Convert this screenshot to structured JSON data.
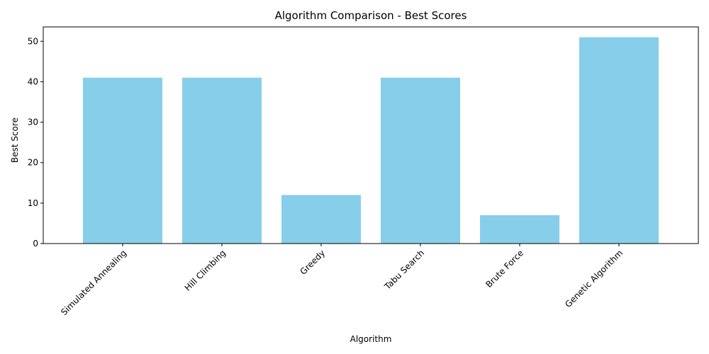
{
  "chart_data": {
    "type": "bar",
    "title": "Algorithm Comparison - Best Scores",
    "xlabel": "Algorithm",
    "ylabel": "Best Score",
    "categories": [
      "Simulated Annealing",
      "Hill Climbing",
      "Greedy",
      "Tabu Search",
      "Brute Force",
      "Genetic Algorithm"
    ],
    "values": [
      41,
      41,
      12,
      41,
      7,
      51
    ],
    "ylim": [
      0,
      53.55
    ],
    "yticks": [
      0,
      10,
      20,
      30,
      40,
      50
    ],
    "bar_color": "#87ceeb",
    "grid": false,
    "legend": "none",
    "x_tick_rotation_deg": 45
  }
}
